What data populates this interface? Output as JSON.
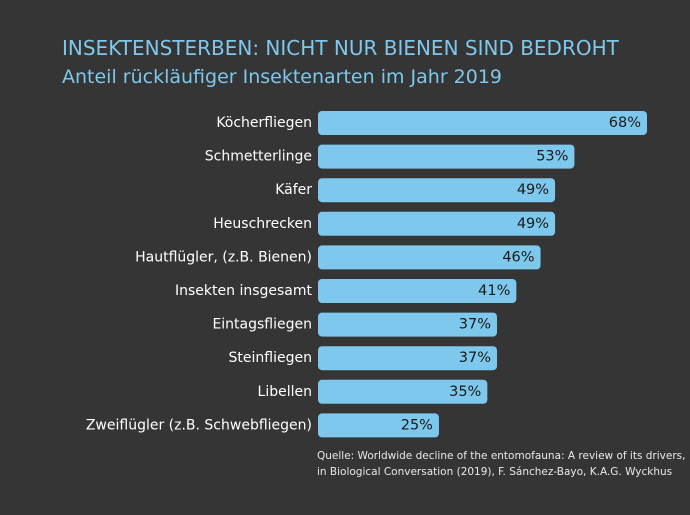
{
  "chart_data": {
    "type": "bar",
    "orientation": "horizontal",
    "title": "INSEKTENSTERBEN: NICHT NUR BIENEN SIND BEDROHT",
    "subtitle": "Anteil rückläufiger Insektenarten im Jahr 2019",
    "categories": [
      "Köcherfliegen",
      "Schmetterlinge",
      "Käfer",
      "Heuschrecken",
      "Hautflügler, (z.B. Bienen)",
      "Insekten insgesamt",
      "Eintagsfliegen",
      "Steinfliegen",
      "Libellen",
      "Zweiflügler (z.B. Schwebfliegen)"
    ],
    "values": [
      68,
      53,
      49,
      49,
      46,
      41,
      37,
      37,
      35,
      25
    ],
    "value_labels": [
      "68%",
      "53%",
      "49%",
      "49%",
      "46%",
      "41%",
      "37%",
      "37%",
      "35%",
      "25%"
    ],
    "unit": "%",
    "xlabel": "",
    "ylabel": "",
    "xlim": [
      0,
      70
    ],
    "grid": false,
    "bar_color": "#7dc8ec",
    "label_color": "#ffffff",
    "value_label_color": "#1a1a1a",
    "title_color": "#7dc8ec",
    "background_color": "#353535"
  },
  "source": {
    "line1": "Quelle: Worldwide decline of the entomofauna: A review of its drivers,",
    "line2": "in Biological Conversation (2019), F. Sánchez-Bayo, K.A.G. Wyckhus"
  }
}
